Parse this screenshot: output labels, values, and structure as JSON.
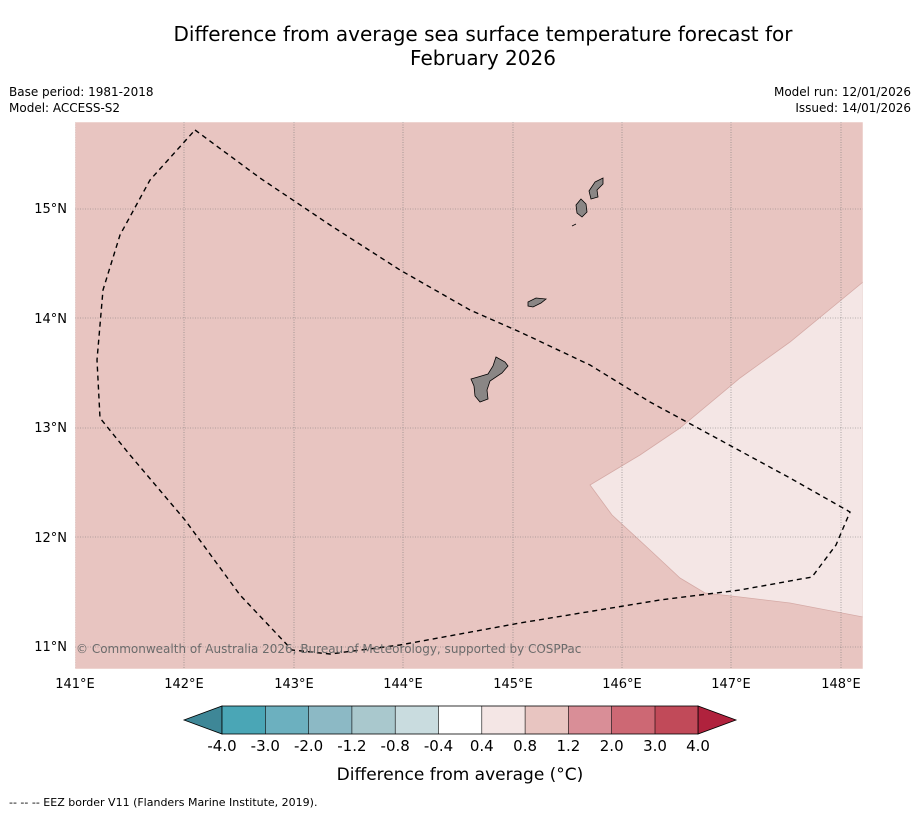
{
  "title_line1": "Difference from average sea surface temperature forecast for",
  "title_line2": "February 2026",
  "base_period": "Base period: 1981-2018",
  "model": "Model: ACCESS-S2",
  "model_run": "Model run: 12/01/2026",
  "issued": "Issued: 14/01/2026",
  "copyright": "© Commonwealth of Australia 2026, Bureau of Meteorology, supported by COSPPac",
  "footnote": "-- -- -- EEZ border V11 (Flanders Marine Institute, 2019).",
  "map": {
    "lon_labels": [
      "141°E",
      "142°E",
      "143°E",
      "144°E",
      "145°E",
      "146°E",
      "147°E",
      "148°E"
    ],
    "lat_labels": [
      "15°N",
      "14°N",
      "13°N",
      "12°N",
      "11°N"
    ],
    "background_anomaly": "0.8 to 1.2",
    "southeast_anomaly": "0.4 to 0.8"
  },
  "colorbar": {
    "title": "Difference from average (°C)",
    "tick_labels": [
      "-4.0",
      "-3.0",
      "-2.0",
      "-1.2",
      "-0.8",
      "-0.4",
      "0.4",
      "0.8",
      "1.2",
      "2.0",
      "3.0",
      "4.0"
    ],
    "colors": [
      "#4aa6b6",
      "#6cb0bf",
      "#8cb9c5",
      "#a9c8cd",
      "#c9dcdf",
      "#ffffff",
      "#f4e6e5",
      "#e8c5c1",
      "#d98e97",
      "#cd6874",
      "#c14a59"
    ],
    "under_color": "#3e8797",
    "over_color": "#b0223d"
  },
  "colors": {
    "background_fill": "#e8c5c1",
    "southeast_fill": "#f4e6e5",
    "land": "#8a8685"
  }
}
